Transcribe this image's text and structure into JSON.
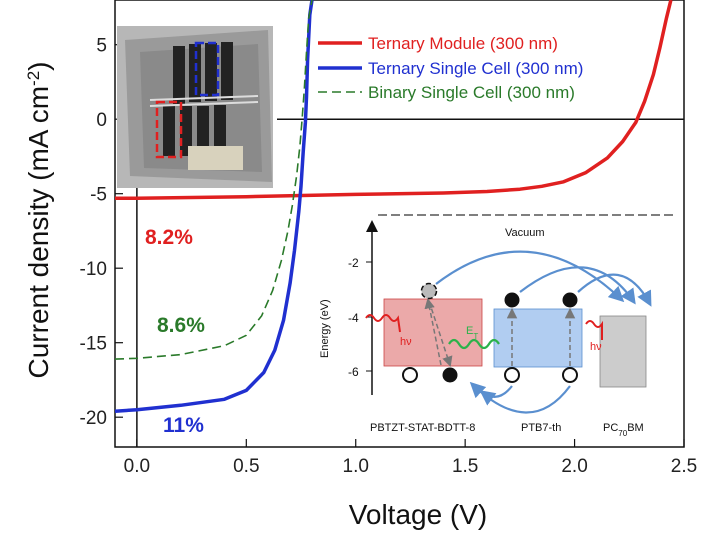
{
  "chart_data": {
    "type": "line",
    "xlabel": "Voltage (V)",
    "ylabel_main": "Current density (mA cm",
    "ylabel_sup": "-2",
    "ylabel_close": ")",
    "xlim": [
      -0.1,
      2.5
    ],
    "ylim": [
      -22,
      8
    ],
    "xticks": [
      0.0,
      0.5,
      1.0,
      1.5,
      2.0,
      2.5
    ],
    "xtick_labels": [
      "0.0",
      "0.5",
      "1.0",
      "1.5",
      "2.0",
      "2.5"
    ],
    "yticks": [
      -20,
      -15,
      -10,
      -5,
      0,
      5
    ],
    "ytick_labels": [
      "-20",
      "-15",
      "-10",
      "-5",
      "0",
      "5"
    ],
    "series": [
      {
        "name": "Ternary Module (300 nm)",
        "color": "#e02020",
        "style": "solid",
        "efficiency_label": "8.2%",
        "x": [
          -0.1,
          0.0,
          0.5,
          1.0,
          1.4,
          1.6,
          1.75,
          1.85,
          1.95,
          2.05,
          2.15,
          2.22,
          2.28,
          2.32,
          2.36,
          2.39,
          2.42,
          2.44
        ],
        "y": [
          -5.3,
          -5.3,
          -5.2,
          -5.05,
          -4.95,
          -4.85,
          -4.7,
          -4.5,
          -4.2,
          -3.6,
          -2.6,
          -1.5,
          -0.2,
          1.2,
          3.0,
          4.8,
          6.8,
          8.0
        ]
      },
      {
        "name": "Ternary Single Cell (300 nm)",
        "color": "#2030d0",
        "style": "solid",
        "efficiency_label": "11%",
        "x": [
          -0.1,
          0.0,
          0.2,
          0.4,
          0.5,
          0.58,
          0.63,
          0.67,
          0.7,
          0.72,
          0.74,
          0.75,
          0.76,
          0.77,
          0.775,
          0.78,
          0.79,
          0.8
        ],
        "y": [
          -19.6,
          -19.5,
          -19.2,
          -18.8,
          -18.2,
          -17.0,
          -15.5,
          -13.5,
          -11.0,
          -8.8,
          -6.2,
          -4.5,
          -2.2,
          -0.2,
          1.5,
          4.0,
          7.0,
          8.0
        ]
      },
      {
        "name": "Binary Single Cell (300 nm)",
        "color": "#2a7a2a",
        "style": "dashed",
        "efficiency_label": "8.6%",
        "x": [
          -0.1,
          0.0,
          0.2,
          0.4,
          0.5,
          0.57,
          0.62,
          0.66,
          0.69,
          0.71,
          0.73,
          0.745,
          0.755,
          0.765,
          0.775,
          0.785,
          0.8
        ],
        "y": [
          -16.1,
          -16.05,
          -15.8,
          -15.2,
          -14.5,
          -13.2,
          -11.5,
          -9.5,
          -7.5,
          -5.8,
          -3.8,
          -1.8,
          0.0,
          2.0,
          4.5,
          6.8,
          8.0
        ]
      }
    ],
    "inset": {
      "vacuum_label": "Vacuum",
      "energy_axis_label": "Energy (eV)",
      "energy_ticks": [
        -2,
        -4,
        -6
      ],
      "energy_tick_labels": [
        "-2",
        "-4",
        "-6"
      ],
      "materials": [
        {
          "name": "PBTZT-STAT-BDTT-8",
          "color": "#e89a9a"
        },
        {
          "name": "PTB7-th",
          "color": "#a8c8f0"
        },
        {
          "name_main": "PC",
          "name_sub": "70",
          "name_tail": "BM",
          "color": "#cccccc"
        }
      ],
      "hv_label": "hν",
      "energy_transfer_label": "E",
      "energy_transfer_sub": "T"
    }
  }
}
